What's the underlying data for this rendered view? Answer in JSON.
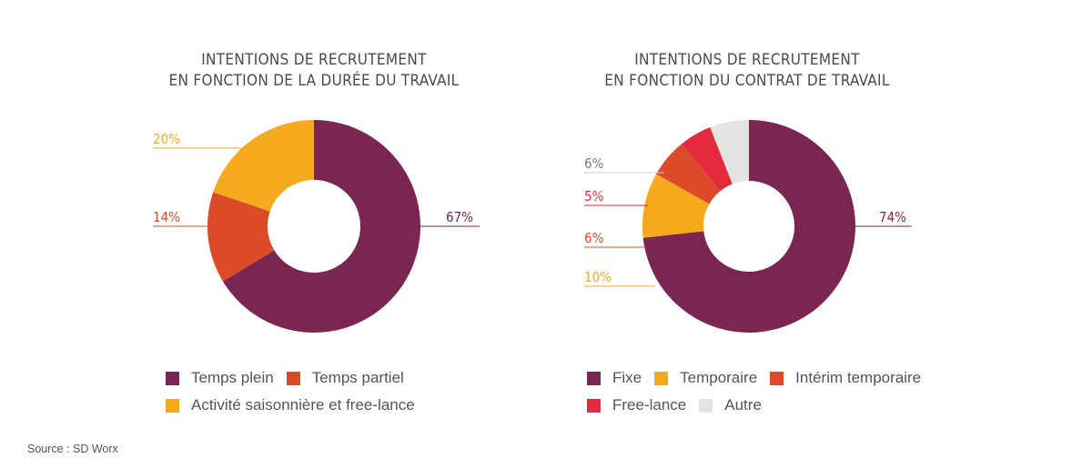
{
  "source": "Source : SD Worx",
  "chart_data": [
    {
      "type": "pie",
      "title_lines": [
        "INTENTIONS DE RECRUTEMENT",
        "EN FONCTION DE LA DURÉE DU TRAVAIL"
      ],
      "series": [
        {
          "name": "Temps plein",
          "value": 67,
          "label": "67%",
          "color": "#7b2553"
        },
        {
          "name": "Temps partiel",
          "value": 14,
          "label": "14%",
          "color": "#db4b28"
        },
        {
          "name": "Activité saisonnière et free-lance",
          "value": 20,
          "label": "20%",
          "color": "#f4aa1c"
        }
      ],
      "legend_rows": [
        [
          0,
          1
        ],
        [
          2
        ]
      ]
    },
    {
      "type": "pie",
      "title_lines": [
        "INTENTIONS DE RECRUTEMENT",
        "EN FONCTION DU CONTRAT DE TRAVAIL"
      ],
      "series": [
        {
          "name": "Fixe",
          "value": 74,
          "label": "74%",
          "color": "#7b2553"
        },
        {
          "name": "Temporaire",
          "value": 10,
          "label": "10%",
          "color": "#f4aa1c"
        },
        {
          "name": "Intérim temporaire",
          "value": 6,
          "label": "6%",
          "color": "#db4b28"
        },
        {
          "name": "Free-lance",
          "value": 5,
          "label": "5%",
          "color": "#e42a3c"
        },
        {
          "name": "Autre",
          "value": 6,
          "label": "6%",
          "color": "#e3e3e3"
        }
      ],
      "legend_rows": [
        [
          0,
          1,
          2
        ],
        [
          3,
          4
        ]
      ]
    }
  ]
}
